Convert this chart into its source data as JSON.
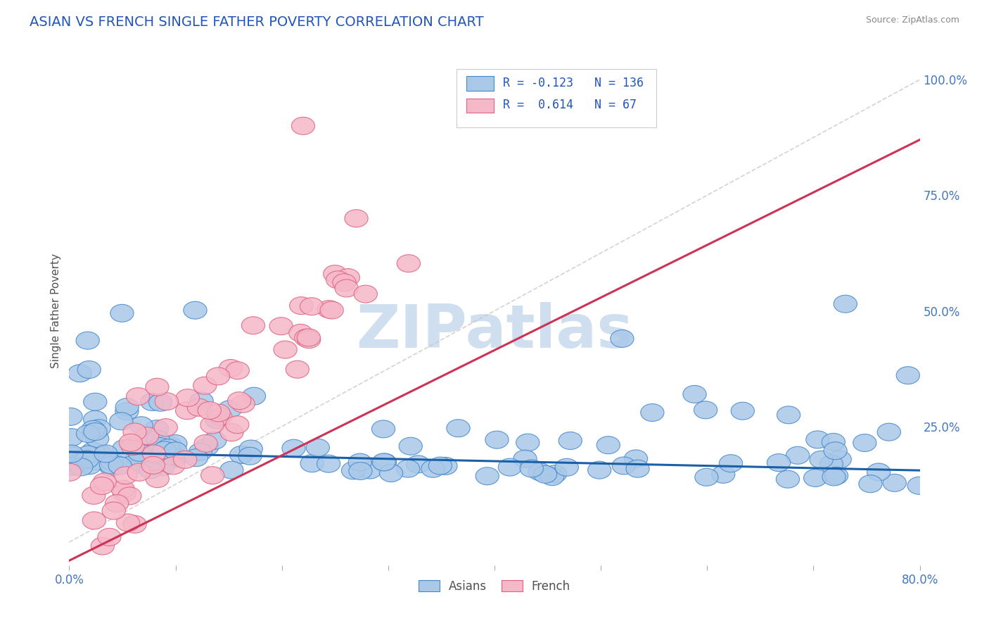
{
  "title": "ASIAN VS FRENCH SINGLE FATHER POVERTY CORRELATION CHART",
  "source": "Source: ZipAtlas.com",
  "ylabel": "Single Father Poverty",
  "xlim": [
    0.0,
    0.8
  ],
  "ylim": [
    -0.05,
    1.05
  ],
  "xticks": [
    0.0,
    0.1,
    0.2,
    0.3,
    0.4,
    0.5,
    0.6,
    0.7,
    0.8
  ],
  "xticklabels": [
    "0.0%",
    "",
    "",
    "",
    "",
    "",
    "",
    "",
    "80.0%"
  ],
  "yticks_right": [
    0.0,
    0.25,
    0.5,
    0.75,
    1.0
  ],
  "yticklabels_right": [
    "",
    "25.0%",
    "50.0%",
    "75.0%",
    "100.0%"
  ],
  "asian_R": -0.123,
  "asian_N": 136,
  "french_R": 0.614,
  "french_N": 67,
  "asian_color": "#aac8e8",
  "asian_edge_color": "#4488cc",
  "asian_line_color": "#1a5fa8",
  "french_color": "#f5b8c8",
  "french_edge_color": "#e06080",
  "french_line_color": "#cc3355",
  "watermark": "ZIPatlas",
  "watermark_color": "#d0dff0",
  "legend_R_color": "#2255bb",
  "title_color": "#2255bb",
  "background_color": "#ffffff",
  "grid_color": "#dde8f5",
  "ref_line_color": "#c8c8c8",
  "asian_line_x0": 0.0,
  "asian_line_x1": 0.8,
  "asian_line_y0": 0.195,
  "asian_line_y1": 0.155,
  "french_line_x0": 0.0,
  "french_line_x1": 0.8,
  "french_line_y0": -0.04,
  "french_line_y1": 0.87
}
